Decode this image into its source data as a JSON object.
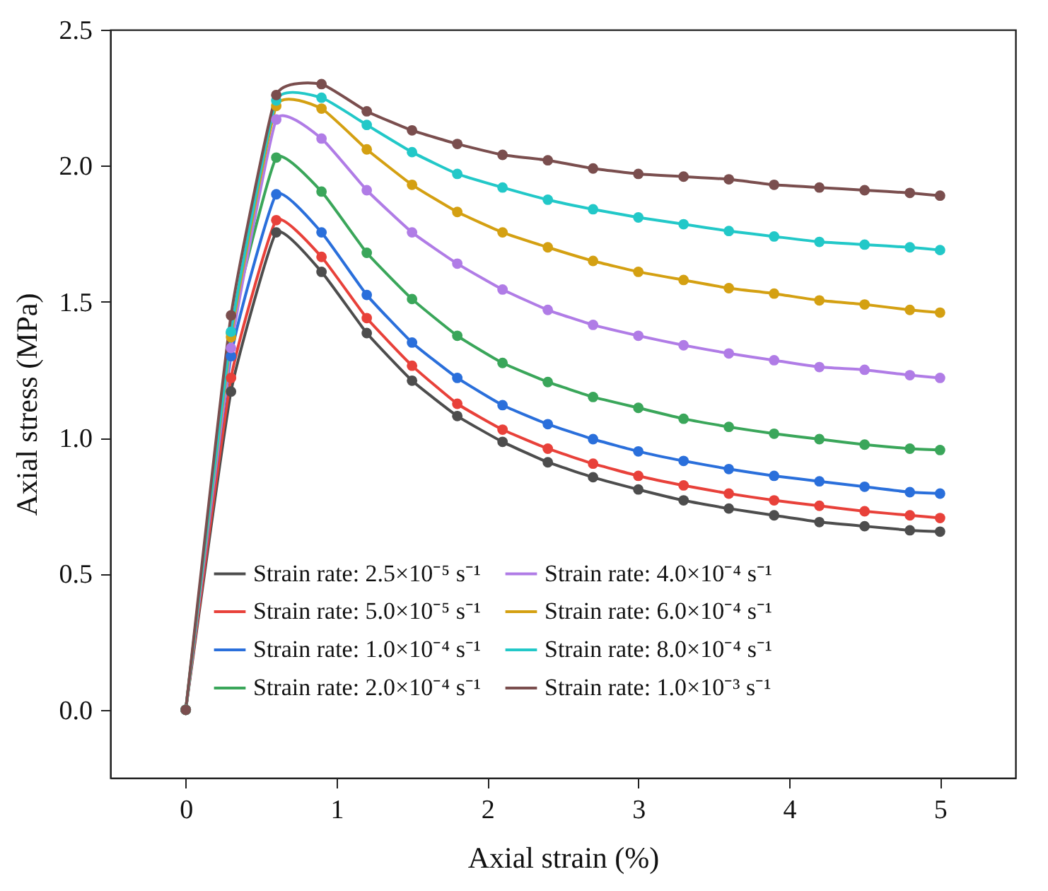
{
  "chart_data": {
    "type": "line",
    "xlabel": "Axial strain (%)",
    "ylabel": "Axial stress (MPa)",
    "x": [
      0,
      0.3,
      0.6,
      0.9,
      1.2,
      1.5,
      1.8,
      2.1,
      2.4,
      2.7,
      3.0,
      3.3,
      3.6,
      3.9,
      4.2,
      4.5,
      4.8,
      5.0
    ],
    "series": [
      {
        "name": "Strain rate: 2.5×10⁻⁵ s⁻¹",
        "color": "#4d4d4d",
        "values": [
          0,
          1.17,
          1.755,
          1.61,
          1.385,
          1.21,
          1.08,
          0.985,
          0.91,
          0.855,
          0.81,
          0.77,
          0.74,
          0.715,
          0.69,
          0.675,
          0.66,
          0.655
        ]
      },
      {
        "name": "Strain rate: 5.0×10⁻⁵ s⁻¹",
        "color": "#e8413a",
        "values": [
          0,
          1.22,
          1.8,
          1.665,
          1.44,
          1.265,
          1.125,
          1.03,
          0.96,
          0.905,
          0.86,
          0.825,
          0.795,
          0.77,
          0.75,
          0.73,
          0.715,
          0.705
        ]
      },
      {
        "name": "Strain rate: 1.0×10⁻⁴ s⁻¹",
        "color": "#2a6fdb",
        "values": [
          0,
          1.3,
          1.895,
          1.755,
          1.525,
          1.35,
          1.22,
          1.12,
          1.05,
          0.995,
          0.95,
          0.915,
          0.885,
          0.86,
          0.84,
          0.82,
          0.8,
          0.795
        ]
      },
      {
        "name": "Strain rate: 2.0×10⁻⁴ s⁻¹",
        "color": "#3aa65a",
        "values": [
          0,
          1.385,
          2.03,
          1.905,
          1.68,
          1.51,
          1.375,
          1.275,
          1.205,
          1.15,
          1.11,
          1.07,
          1.04,
          1.015,
          0.995,
          0.975,
          0.96,
          0.955
        ]
      },
      {
        "name": "Strain rate: 4.0×10⁻⁴ s⁻¹",
        "color": "#b07ce6",
        "values": [
          0,
          1.33,
          2.17,
          2.1,
          1.91,
          1.755,
          1.64,
          1.545,
          1.47,
          1.415,
          1.375,
          1.34,
          1.31,
          1.285,
          1.26,
          1.25,
          1.23,
          1.22
        ]
      },
      {
        "name": "Strain rate: 6.0×10⁻⁴ s⁻¹",
        "color": "#d4a012",
        "values": [
          0,
          1.37,
          2.22,
          2.21,
          2.06,
          1.93,
          1.83,
          1.755,
          1.7,
          1.65,
          1.61,
          1.58,
          1.55,
          1.53,
          1.505,
          1.49,
          1.47,
          1.46
        ]
      },
      {
        "name": "Strain rate: 8.0×10⁻⁴ s⁻¹",
        "color": "#22c8c8",
        "values": [
          0,
          1.39,
          2.24,
          2.25,
          2.15,
          2.05,
          1.97,
          1.92,
          1.875,
          1.84,
          1.81,
          1.785,
          1.76,
          1.74,
          1.72,
          1.71,
          1.7,
          1.69
        ]
      },
      {
        "name": "Strain rate: 1.0×10⁻³ s⁻¹",
        "color": "#7a4e4e",
        "values": [
          0,
          1.45,
          2.26,
          2.3,
          2.2,
          2.13,
          2.08,
          2.04,
          2.02,
          1.99,
          1.97,
          1.96,
          1.95,
          1.93,
          1.92,
          1.91,
          1.9,
          1.89
        ]
      }
    ],
    "xlim": [
      -0.5,
      5.5
    ],
    "xticks": [
      0,
      1,
      2,
      3,
      4,
      5
    ],
    "ylim": [
      -0.25,
      2.5
    ],
    "yticks": [
      {
        "value": 0,
        "label": "0.0"
      },
      {
        "value": 0.5,
        "label": "0.5"
      },
      {
        "value": 1,
        "label": "1.0"
      },
      {
        "value": 1.5,
        "label": "1.5"
      },
      {
        "value": 2,
        "label": "2.0"
      },
      {
        "value": 2.5,
        "label": "2.5"
      }
    ],
    "legend": "bottom",
    "marker": "circle",
    "line_style": "solid",
    "grid": false
  }
}
